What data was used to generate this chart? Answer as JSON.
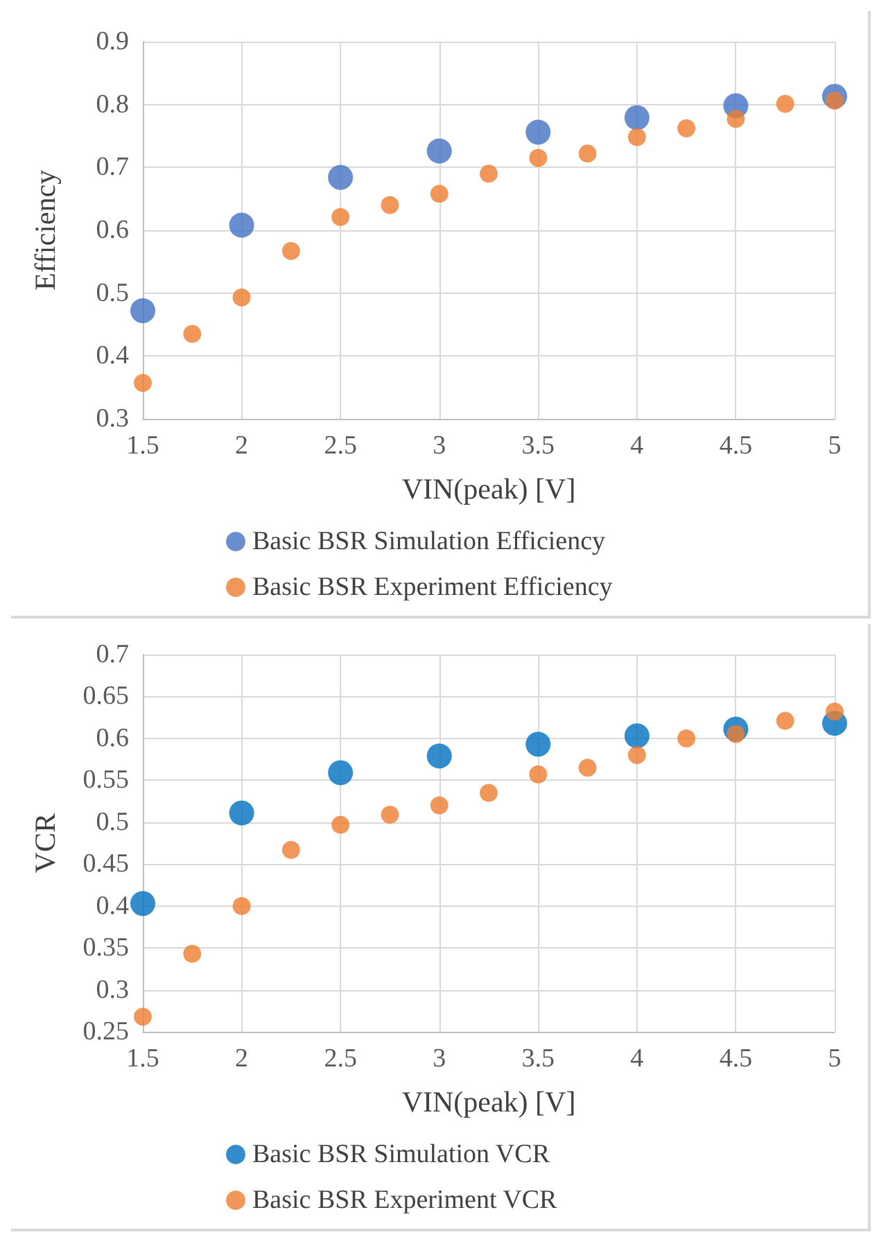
{
  "chart_data": [
    {
      "type": "scatter",
      "xlabel": "VIN(peak) [V]",
      "ylabel": "Efficiency",
      "xlim": [
        1.5,
        5
      ],
      "xticks": [
        1.5,
        2,
        2.5,
        3,
        3.5,
        4,
        4.5,
        5
      ],
      "ylim": [
        0.3,
        0.9
      ],
      "yticks": [
        0.3,
        0.4,
        0.5,
        0.6,
        0.7,
        0.8,
        0.9
      ],
      "grid": true,
      "legend": "bottom",
      "marker": "circle",
      "series": [
        {
          "name": "Basic BSR Simulation Efficiency",
          "color": "#4472c4",
          "x": [
            1.5,
            2,
            2.5,
            3,
            3.5,
            4,
            4.5,
            5
          ],
          "values": [
            0.472,
            0.608,
            0.684,
            0.726,
            0.756,
            0.779,
            0.798,
            0.813
          ]
        },
        {
          "name": "Basic BSR Experiment Efficiency",
          "color": "#ed7d31",
          "x": [
            1.5,
            1.75,
            2,
            2.25,
            2.5,
            2.75,
            3,
            3.25,
            3.5,
            3.75,
            4,
            4.25,
            4.5,
            4.75,
            5
          ],
          "values": [
            0.357,
            0.435,
            0.493,
            0.567,
            0.621,
            0.64,
            0.658,
            0.69,
            0.715,
            0.722,
            0.748,
            0.762,
            0.777,
            0.801,
            0.806
          ]
        }
      ]
    },
    {
      "type": "scatter",
      "xlabel": "VIN(peak) [V]",
      "ylabel": "VCR",
      "xlim": [
        1.5,
        5
      ],
      "xticks": [
        1.5,
        2,
        2.5,
        3,
        3.5,
        4,
        4.5,
        5
      ],
      "ylim": [
        0.25,
        0.7
      ],
      "yticks": [
        0.25,
        0.3,
        0.35,
        0.4,
        0.45,
        0.5,
        0.55,
        0.6,
        0.65,
        0.7
      ],
      "grid": true,
      "legend": "bottom",
      "marker": "circle",
      "series": [
        {
          "name": "Basic BSR Simulation VCR",
          "color": "#0070c0",
          "x": [
            1.5,
            2,
            2.5,
            3,
            3.5,
            4,
            4.5,
            5
          ],
          "values": [
            0.403,
            0.511,
            0.559,
            0.579,
            0.593,
            0.603,
            0.611,
            0.618
          ]
        },
        {
          "name": "Basic BSR Experiment VCR",
          "color": "#ed7d31",
          "x": [
            1.5,
            1.75,
            2,
            2.25,
            2.5,
            2.75,
            3,
            3.25,
            3.5,
            3.75,
            4,
            4.25,
            4.5,
            4.75,
            5
          ],
          "values": [
            0.268,
            0.343,
            0.4,
            0.467,
            0.497,
            0.509,
            0.52,
            0.535,
            0.557,
            0.565,
            0.58,
            0.6,
            0.605,
            0.621,
            0.632
          ]
        }
      ]
    }
  ]
}
